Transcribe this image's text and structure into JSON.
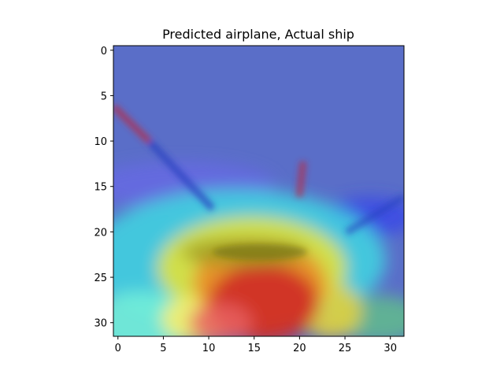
{
  "chart_data": {
    "type": "heatmap",
    "title": "Predicted airplane, Actual ship",
    "xlabel": "",
    "ylabel": "",
    "xlim": [
      -0.5,
      31.5
    ],
    "ylim": [
      31.5,
      -0.5
    ],
    "xticks": [
      0,
      5,
      10,
      15,
      20,
      25,
      30
    ],
    "yticks": [
      0,
      5,
      10,
      15,
      20,
      25,
      30
    ],
    "image_size": [
      32,
      32
    ],
    "overlay": "grad-cam heatmap (jet colormap) over ship image",
    "colormap": [
      "#0000b0",
      "#2040ff",
      "#00c8ff",
      "#40ffb0",
      "#ffff40",
      "#ff9020",
      "#d02020"
    ],
    "background_color": "#5a6ec8",
    "grid": false
  }
}
